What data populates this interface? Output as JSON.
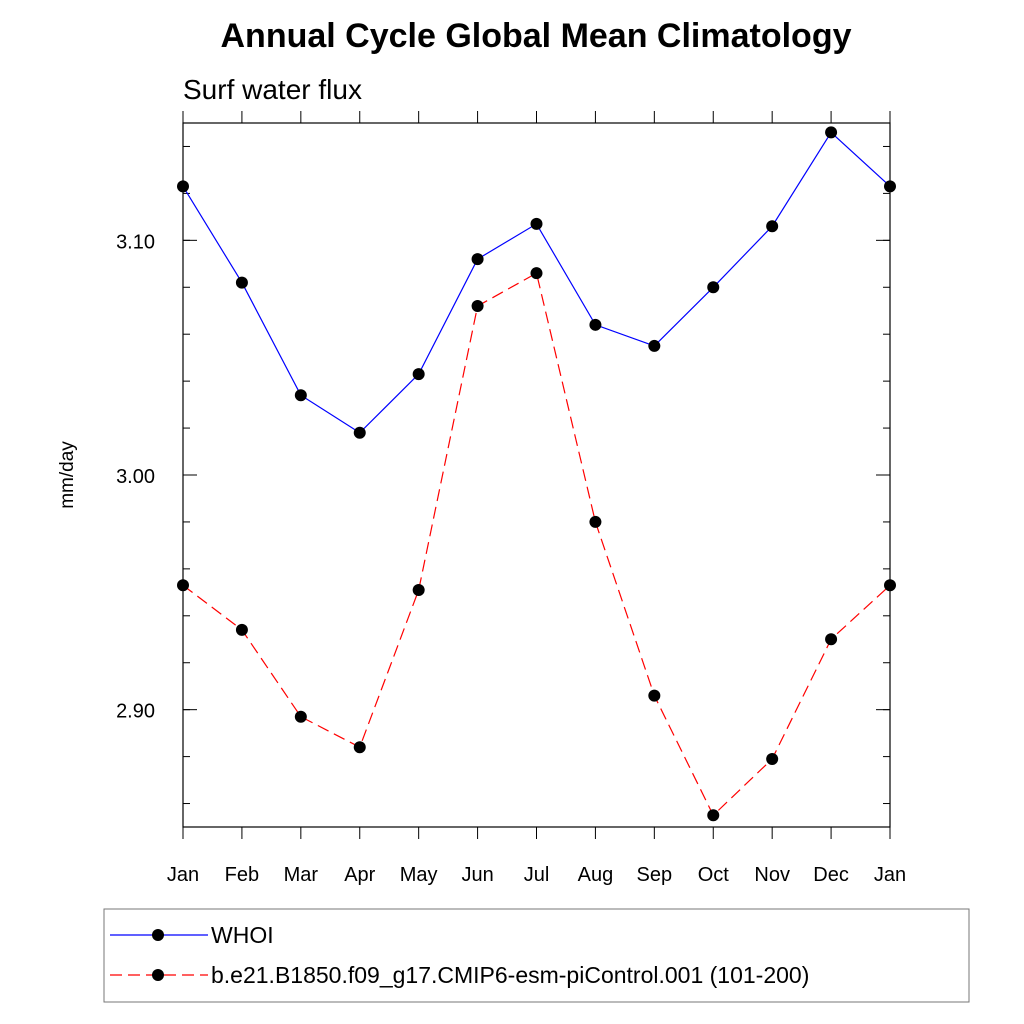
{
  "chart_data": {
    "type": "line",
    "title": "Annual Cycle Global Mean Climatology",
    "subtitle": "Surf water flux",
    "xlabel": "",
    "ylabel": "mm/day",
    "categories": [
      "Jan",
      "Feb",
      "Mar",
      "Apr",
      "May",
      "Jun",
      "Jul",
      "Aug",
      "Sep",
      "Oct",
      "Nov",
      "Dec",
      "Jan"
    ],
    "ylim": [
      2.85,
      3.15
    ],
    "yticks": [
      2.9,
      3.0,
      3.1
    ],
    "ytick_labels": [
      "2.90",
      "3.00",
      "3.10"
    ],
    "grid": false,
    "legend_position": "bottom",
    "series": [
      {
        "name": "WHOI",
        "color": "#0000ff",
        "line_style": "solid",
        "marker": "filled-circle",
        "values": [
          3.123,
          3.082,
          3.034,
          3.018,
          3.043,
          3.092,
          3.107,
          3.064,
          3.055,
          3.08,
          3.106,
          3.146,
          3.123
        ]
      },
      {
        "name": "b.e21.B1850.f09_g17.CMIP6-esm-piControl.001 (101-200)",
        "color": "#ff0000",
        "line_style": "dashed",
        "marker": "filled-circle",
        "values": [
          2.953,
          2.934,
          2.897,
          2.884,
          2.951,
          3.072,
          3.086,
          2.98,
          2.906,
          2.855,
          2.879,
          2.93,
          2.953
        ]
      }
    ]
  }
}
